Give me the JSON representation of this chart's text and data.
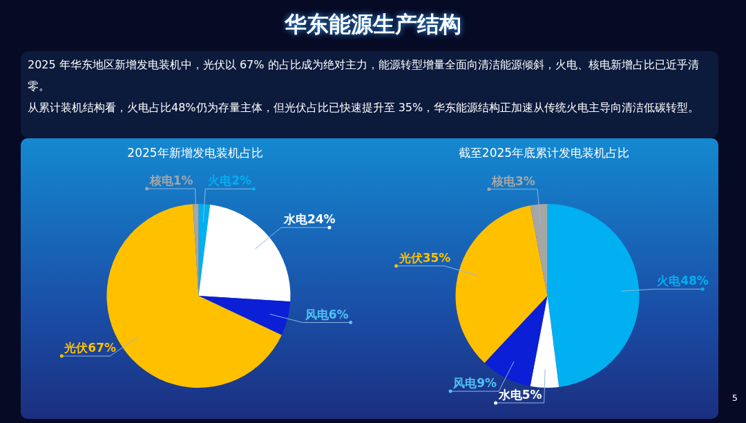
{
  "chart_data": [
    {
      "type": "pie",
      "title": "2025年新增发电装机占比",
      "categories": [
        "火电",
        "水电",
        "风电",
        "光伏",
        "核电"
      ],
      "values": [
        2,
        24,
        6,
        67,
        1
      ],
      "value_labels": [
        "2%",
        "24%",
        "6%",
        "67%",
        "1%"
      ],
      "colors": [
        "#00b0f0",
        "#ffffff",
        "#0a1fd6",
        "#ffc000",
        "#a6a6a6"
      ],
      "annotations": [
        "华东能源生产结构",
        "2025 年华东地区新增发电装机中，光伏以 67% 的占比成为绝对主力，能源转型增量全面向清洁能源倾斜，火电、核电新增占比已近乎清零。",
        "从累计装机结构看，火电占比48%仍为存量主体，但光伏占比已快速提升至 35%，华东能源结构正加速从传统火电主导向清洁低碳转型。"
      ]
    },
    {
      "type": "pie",
      "title": "截至2025年底累计发电装机占比",
      "categories": [
        "火电",
        "水电",
        "风电",
        "光伏",
        "核电"
      ],
      "values": [
        48,
        5,
        9,
        35,
        3
      ],
      "value_labels": [
        "48%",
        "5%",
        "9%",
        "35%",
        "3%"
      ],
      "colors": [
        "#00b0f0",
        "#ffffff",
        "#0a1fd6",
        "#ffc000",
        "#a6a6a6"
      ],
      "annotations": [
        "5"
      ]
    }
  ]
}
